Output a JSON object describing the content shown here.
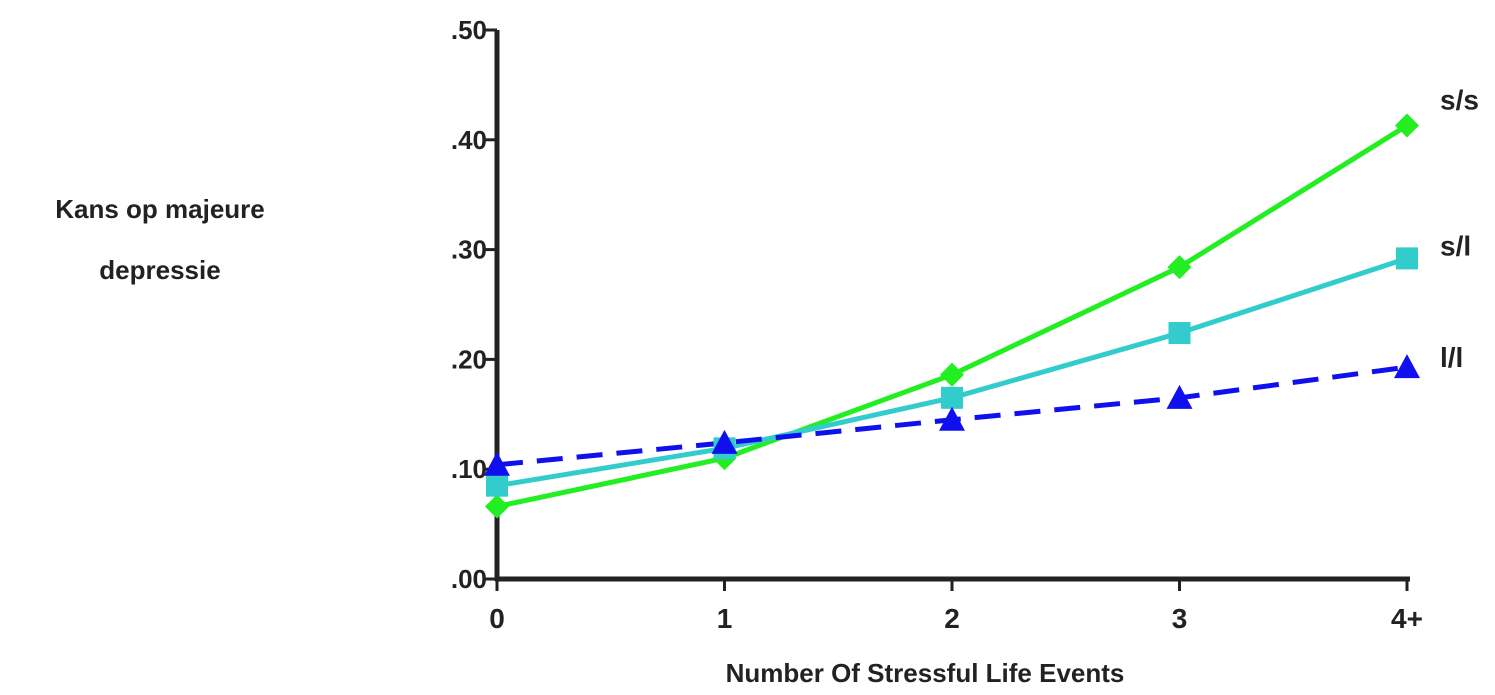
{
  "chart_data": {
    "type": "line",
    "title": "",
    "xlabel": "Number Of Stressful Life Events",
    "ylabel_lines": [
      "Kans op majeure",
      "depressie"
    ],
    "categories": [
      "0",
      "1",
      "2",
      "3",
      "4+"
    ],
    "yticks": [
      ".00",
      ".10",
      ".20",
      ".30",
      ".40",
      ".50"
    ],
    "ylim": [
      0,
      0.5
    ],
    "grid": false,
    "legend": "inline-right",
    "series": [
      {
        "name": "s/s",
        "values": [
          0.066,
          0.11,
          0.186,
          0.284,
          0.413
        ],
        "color": "#22ee22",
        "marker": "diamond",
        "dash": "solid"
      },
      {
        "name": "s/l",
        "values": [
          0.085,
          0.119,
          0.165,
          0.224,
          0.292
        ],
        "color": "#33cccc",
        "marker": "square",
        "dash": "solid"
      },
      {
        "name": "l/l",
        "values": [
          0.104,
          0.124,
          0.145,
          0.165,
          0.193
        ],
        "color": "#1010ee",
        "marker": "triangle",
        "dash": "dashed"
      }
    ]
  }
}
